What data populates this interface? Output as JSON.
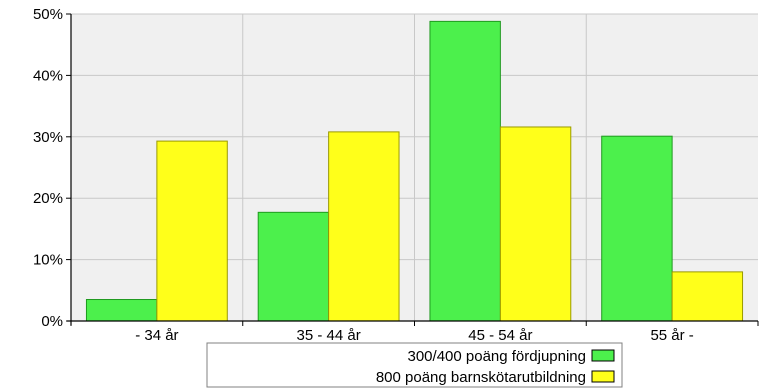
{
  "chart_data": {
    "type": "bar",
    "categories": [
      "- 34 år",
      "35 - 44 år",
      "45 - 54 år",
      "55 år -"
    ],
    "series": [
      {
        "name": "300/400 poäng fördjupning",
        "values": [
          3.5,
          17.7,
          48.8,
          30.1
        ],
        "color": "#4cf04c"
      },
      {
        "name": "800 poäng barnskötarutbildning",
        "values": [
          29.3,
          30.8,
          31.6,
          8.0
        ],
        "color": "#ffff1a"
      }
    ],
    "ylim": [
      0,
      50
    ],
    "yticks": [
      0,
      10,
      20,
      30,
      40,
      50
    ],
    "ytick_labels": [
      "0%",
      "10%",
      "20%",
      "30%",
      "40%",
      "50%"
    ],
    "title": "",
    "xlabel": "",
    "ylabel": "",
    "grid": true,
    "legend_position": "bottom-center",
    "plot_background": "#f0f0f0"
  }
}
